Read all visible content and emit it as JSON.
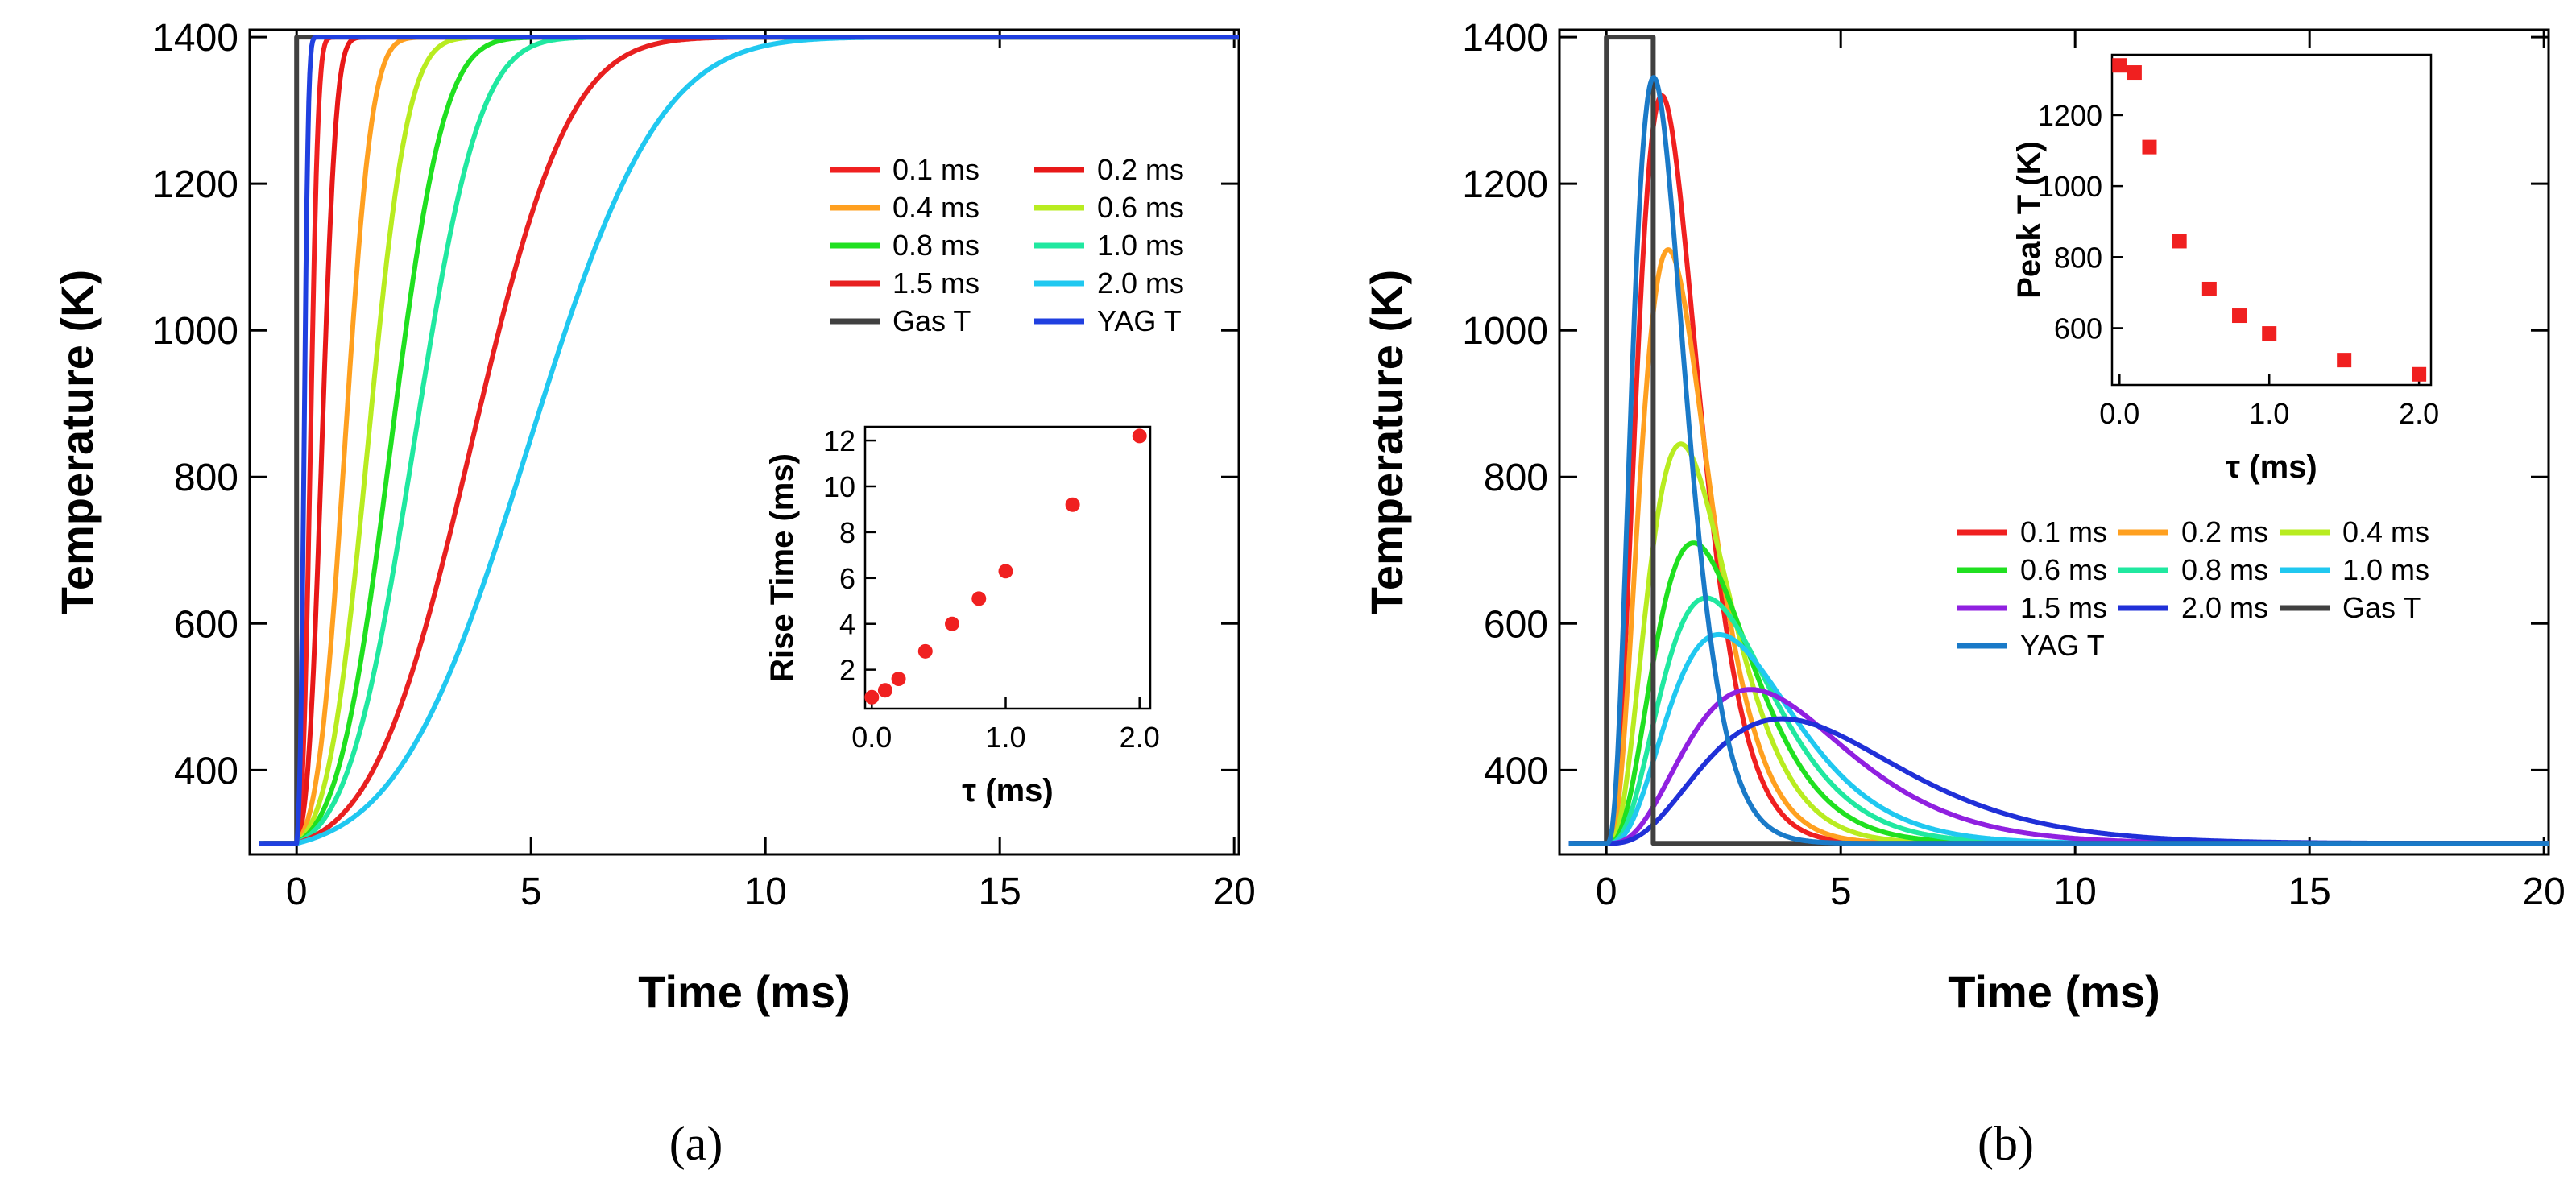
{
  "chart_data": [
    {
      "id": "a",
      "type": "line",
      "caption": "(a)",
      "xlabel": "Time (ms)",
      "ylabel": "Temperature (K)",
      "xlim": [
        -1,
        20.1
      ],
      "ylim": [
        285,
        1410
      ],
      "xticks": [
        "0",
        "5",
        "10",
        "15",
        "20"
      ],
      "yticks": [
        "400",
        "600",
        "800",
        "1000",
        "1200",
        "1400"
      ],
      "legend_position": "right-middle",
      "series": [
        {
          "name": "0.1 ms",
          "tau": 0.1,
          "color": "#f02020",
          "model": "rise"
        },
        {
          "name": "0.2 ms",
          "tau": 0.2,
          "color": "#e81818",
          "model": "rise"
        },
        {
          "name": "0.4 ms",
          "tau": 0.4,
          "color": "#ffa020",
          "model": "rise"
        },
        {
          "name": "0.6 ms",
          "tau": 0.6,
          "color": "#b8ec20",
          "model": "rise"
        },
        {
          "name": "0.8 ms",
          "tau": 0.8,
          "color": "#20e020",
          "model": "rise"
        },
        {
          "name": "1.0 ms",
          "tau": 1.0,
          "color": "#20e8a0",
          "model": "rise"
        },
        {
          "name": "1.5 ms",
          "tau": 1.5,
          "color": "#e82020",
          "model": "rise"
        },
        {
          "name": "2.0 ms",
          "tau": 2.0,
          "color": "#20c8f0",
          "model": "rise"
        },
        {
          "name": "Gas T",
          "color": "#404040",
          "model": "gas_step"
        },
        {
          "name": "YAG T",
          "color": "#2040e0",
          "model": "yag_rise"
        }
      ],
      "inset": {
        "type": "scatter",
        "xlabel": "τ (ms)",
        "ylabel": "Rise Time (ms)",
        "xlim": [
          -0.05,
          2.08
        ],
        "ylim": [
          0.3,
          12.6
        ],
        "xticks": [
          "0.0",
          "1.0",
          "2.0"
        ],
        "yticks": [
          "2",
          "4",
          "6",
          "8",
          "10",
          "12"
        ],
        "marker": "circle",
        "color": "#f02020",
        "x": [
          0.0,
          0.1,
          0.2,
          0.4,
          0.6,
          0.8,
          1.0,
          1.5,
          2.0
        ],
        "y": [
          0.8,
          1.1,
          1.6,
          2.8,
          4.0,
          5.1,
          6.3,
          9.2,
          12.2
        ]
      }
    },
    {
      "id": "b",
      "type": "line",
      "caption": "(b)",
      "xlabel": "Time (ms)",
      "ylabel": "Temperature (K)",
      "xlim": [
        -1,
        20.1
      ],
      "ylim": [
        285,
        1410
      ],
      "xticks": [
        "0",
        "5",
        "10",
        "15",
        "20"
      ],
      "yticks": [
        "400",
        "600",
        "800",
        "1000",
        "1200",
        "1400"
      ],
      "legend_position": "right-middle",
      "series": [
        {
          "name": "0.1 ms",
          "tau": 0.1,
          "peak": 1320,
          "color": "#f02020",
          "model": "pulse"
        },
        {
          "name": "0.2 ms",
          "tau": 0.2,
          "peak": 1110,
          "color": "#ffa020",
          "model": "pulse"
        },
        {
          "name": "0.4 ms",
          "tau": 0.4,
          "peak": 845,
          "color": "#b8ec20",
          "model": "pulse"
        },
        {
          "name": "0.6 ms",
          "tau": 0.6,
          "peak": 710,
          "color": "#20e020",
          "model": "pulse"
        },
        {
          "name": "0.8 ms",
          "tau": 0.8,
          "peak": 635,
          "color": "#20e8a0",
          "model": "pulse"
        },
        {
          "name": "1.0 ms",
          "tau": 1.0,
          "peak": 585,
          "color": "#20c8f0",
          "model": "pulse"
        },
        {
          "name": "1.5 ms",
          "tau": 1.5,
          "peak": 510,
          "color": "#9020e0",
          "model": "pulse"
        },
        {
          "name": "2.0 ms",
          "tau": 2.0,
          "peak": 470,
          "color": "#2030d8",
          "model": "pulse"
        },
        {
          "name": "Gas T",
          "color": "#404040",
          "model": "gas_pulse"
        },
        {
          "name": "YAG T",
          "peak": 1345,
          "color": "#1a7ac8",
          "model": "yag_pulse"
        }
      ],
      "inset": {
        "type": "scatter",
        "xlabel": "τ (ms)",
        "ylabel": "Peak T (K)",
        "xlim": [
          -0.05,
          2.08
        ],
        "ylim": [
          440,
          1370
        ],
        "xticks": [
          "0.0",
          "1.0",
          "2.0"
        ],
        "yticks": [
          "600",
          "800",
          "1000",
          "1200"
        ],
        "marker": "square",
        "color": "#f02020",
        "x": [
          0.0,
          0.1,
          0.2,
          0.4,
          0.6,
          0.8,
          1.0,
          1.5,
          2.0
        ],
        "y": [
          1340,
          1320,
          1110,
          845,
          710,
          635,
          585,
          510,
          470
        ]
      }
    }
  ]
}
